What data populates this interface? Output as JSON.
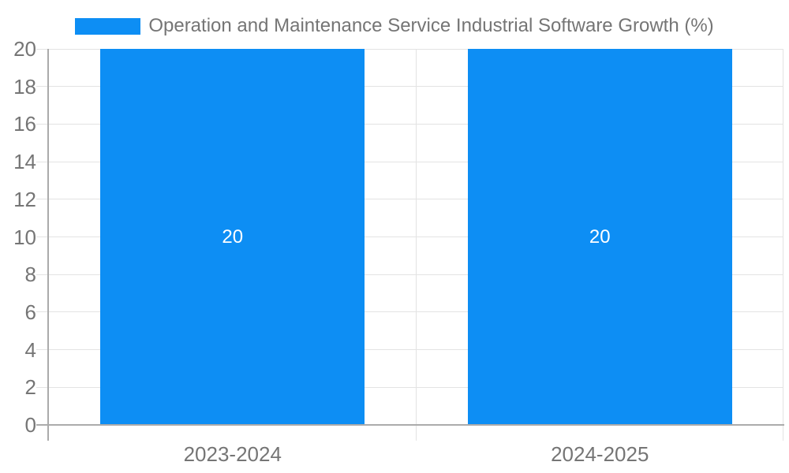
{
  "chart_data": {
    "type": "bar",
    "title": "Operation and Maintenance Service Industrial Software Growth (%)",
    "categories": [
      "2023-2024",
      "2024-2025"
    ],
    "values": [
      20,
      20
    ],
    "bar_value_labels": [
      "20",
      "20"
    ],
    "xlabel": "",
    "ylabel": "",
    "ylim": [
      0,
      20
    ],
    "yticks": [
      0,
      2,
      4,
      6,
      8,
      10,
      12,
      14,
      16,
      18,
      20
    ],
    "grid": true,
    "legend_position": "top-center",
    "bar_width_fraction": 0.72,
    "colors": {
      "bar": "#0d8ef4",
      "bar_label": "#ffffff",
      "axis_line": "#ababab",
      "gridline": "#e3e3e3",
      "tick_label": "#757575",
      "legend_text": "#757575",
      "background": "#ffffff"
    }
  }
}
